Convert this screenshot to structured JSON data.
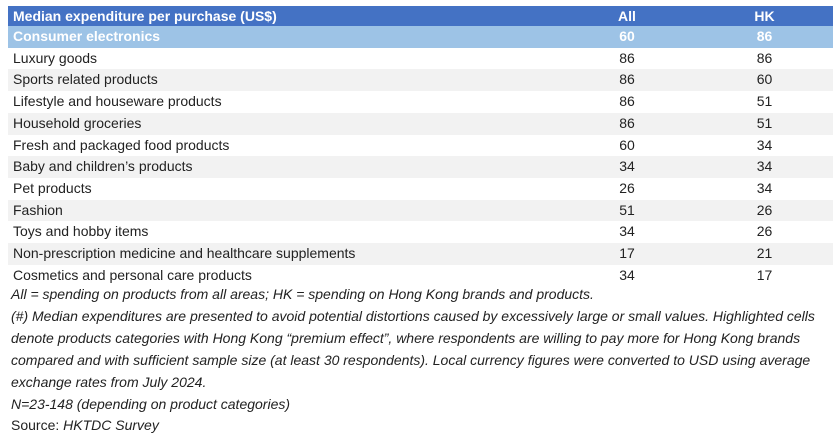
{
  "table": {
    "headers": [
      "Median expenditure per purchase (US$)",
      "All",
      "HK"
    ],
    "rows": [
      {
        "category": "Consumer electronics",
        "all": "60",
        "hk": "86"
      },
      {
        "category": "Luxury goods",
        "all": "86",
        "hk": "86"
      },
      {
        "category": "Sports related products",
        "all": "86",
        "hk": "60"
      },
      {
        "category": "Lifestyle and houseware products",
        "all": "86",
        "hk": "51"
      },
      {
        "category": "Household groceries",
        "all": "86",
        "hk": "51"
      },
      {
        "category": "Fresh and packaged food products",
        "all": "60",
        "hk": "34"
      },
      {
        "category": "Baby and children’s products",
        "all": "34",
        "hk": "34"
      },
      {
        "category": "Pet products",
        "all": "26",
        "hk": "34"
      },
      {
        "category": "Fashion",
        "all": "51",
        "hk": "26"
      },
      {
        "category": "Toys and hobby items",
        "all": "34",
        "hk": "26"
      },
      {
        "category": "Non-prescription medicine and healthcare supplements",
        "all": "17",
        "hk": "21"
      },
      {
        "category": "Cosmetics and personal care products",
        "all": "34",
        "hk": "17"
      }
    ],
    "highlighted_row": "Consumer electronics"
  },
  "notes": {
    "legend": "All = spending on products from all areas; HK = spending on Hong Kong brands and products.",
    "footnote": "(#) Median expenditures are presented to avoid potential distortions caused by excessively large or small values. Highlighted cells denote products categories with Hong Kong “premium effect”, where respondents are willing to pay more for Hong Kong brands compared and with sufficient sample size (at least 30 respondents). Local currency figures were converted to USD using average exchange rates from July 2024.",
    "sample": "N=23-148 (depending on product categories)",
    "source_label": "Source:",
    "source_name": "HKTDC Survey"
  },
  "colors": {
    "header_bg": "#4472c4",
    "highlight_bg": "#9dc3e6",
    "stripe_bg": "#f2f2f2"
  }
}
